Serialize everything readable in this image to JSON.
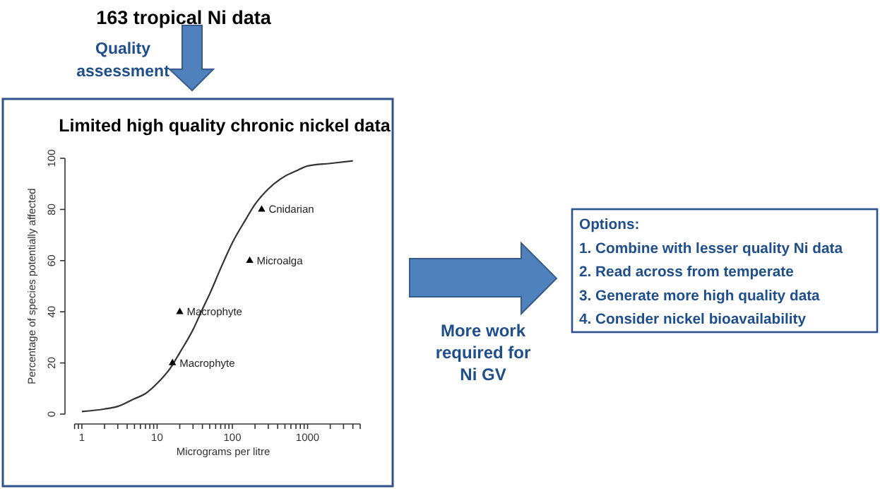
{
  "chart_data": {
    "type": "line",
    "title": "Limited high quality chronic nickel data",
    "xlabel": "Micrograms per litre",
    "ylabel": "Percentage of species potentially affected",
    "log": "x",
    "xlim": [
      0.8,
      5000
    ],
    "ylim": [
      0,
      100
    ],
    "xticks": [
      {
        "value": 0.8,
        "label": null
      },
      {
        "value": 0.9,
        "label": null
      },
      1,
      {
        "value": 2,
        "label": null
      },
      {
        "value": 3,
        "label": null
      },
      {
        "value": 4,
        "label": null
      },
      {
        "value": 5,
        "label": null
      },
      {
        "value": 6,
        "label": null
      },
      {
        "value": 7,
        "label": null
      },
      {
        "value": 8,
        "label": null
      },
      {
        "value": 9,
        "label": null
      },
      10,
      {
        "value": 20,
        "label": null
      },
      {
        "value": 30,
        "label": null
      },
      {
        "value": 40,
        "label": null
      },
      {
        "value": 50,
        "label": null
      },
      {
        "value": 60,
        "label": null
      },
      {
        "value": 70,
        "label": null
      },
      {
        "value": 80,
        "label": null
      },
      {
        "value": 90,
        "label": null
      },
      100,
      {
        "value": 200,
        "label": null
      },
      {
        "value": 300,
        "label": null
      },
      {
        "value": 400,
        "label": null
      },
      {
        "value": 500,
        "label": null
      },
      {
        "value": 600,
        "label": null
      },
      {
        "value": 700,
        "label": null
      },
      {
        "value": 800,
        "label": null
      },
      {
        "value": 900,
        "label": null
      },
      1000,
      {
        "value": 2000,
        "label": null
      },
      {
        "value": 3000,
        "label": null
      },
      {
        "value": 4000,
        "label": null
      },
      {
        "value": 5000,
        "label": null
      }
    ],
    "yticks": [
      0,
      20,
      40,
      60,
      80,
      100
    ],
    "grid": false,
    "series": [
      {
        "color": "#333333",
        "line_style": "solid",
        "marker": "none",
        "x": [
          1,
          2,
          3,
          5,
          7,
          10,
          15,
          20,
          30,
          40,
          50,
          70,
          100,
          150,
          200,
          300,
          500,
          700,
          1000,
          2000,
          4000
        ],
        "values": [
          1,
          2,
          3,
          6,
          8,
          12,
          18,
          24,
          33,
          41,
          47,
          57,
          67,
          76,
          82,
          88,
          93,
          95,
          97,
          98,
          99
        ]
      },
      {
        "type": "scatter",
        "color": "#000000",
        "marker": "triangle",
        "x": [
          16,
          20,
          170,
          245
        ],
        "values": [
          20,
          40,
          60,
          80
        ]
      }
    ],
    "annotations": [
      {
        "text": "Macrophyte",
        "x": 16,
        "y": 20
      },
      {
        "text": "Macrophyte",
        "x": 20,
        "y": 40
      },
      {
        "text": "Microalga",
        "x": 170,
        "y": 60
      },
      {
        "text": "Cnidarian",
        "x": 245,
        "y": 80
      },
      "163 tropical Ni data",
      "Quality\nassessment",
      "More work\nrequired for\nNi GV",
      "Options:\n1. Combine with lesser quality Ni data\n2. Read across from temperate\n3. Generate more high quality data\n4. Consider nickel bioavailability"
    ]
  }
}
